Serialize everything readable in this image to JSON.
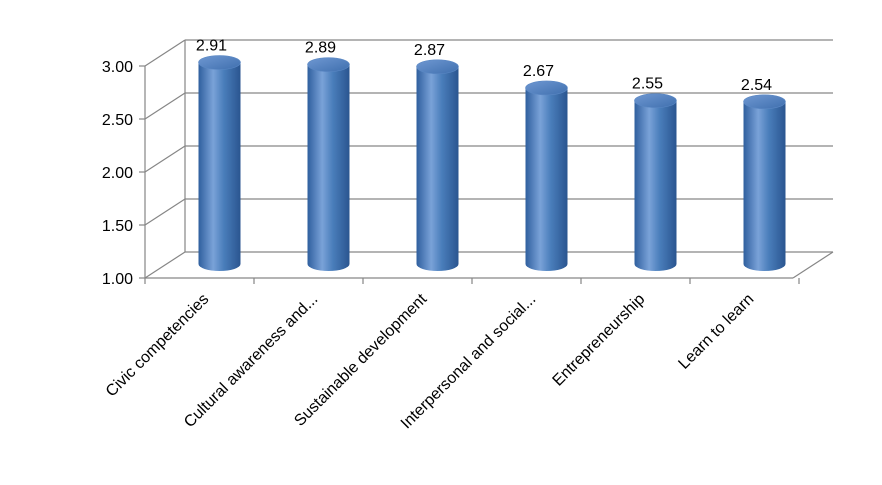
{
  "chart_data": {
    "type": "bar",
    "title": "",
    "xlabel": "",
    "ylabel": "",
    "categories": [
      "Civic competencies",
      "Cultural awareness and...",
      "Sustainable development",
      "Interpersonal and social...",
      "Entrepreneurship",
      "Learn to learn"
    ],
    "values": [
      2.91,
      2.89,
      2.87,
      2.67,
      2.55,
      2.54
    ],
    "data_labels": [
      "2.91",
      "2.89",
      "2.87",
      "2.67",
      "2.55",
      "2.54"
    ],
    "ylim": [
      1.0,
      3.0
    ],
    "yticks": [
      "1.00",
      "1.50",
      "2.00",
      "2.50",
      "3.00"
    ],
    "grid": true,
    "legend": "none",
    "bar_color": "#4a7ebb",
    "bar_highlight": "#8fb2e0",
    "bar_shadow": "#2c5a96",
    "grid_color": "#868686"
  }
}
